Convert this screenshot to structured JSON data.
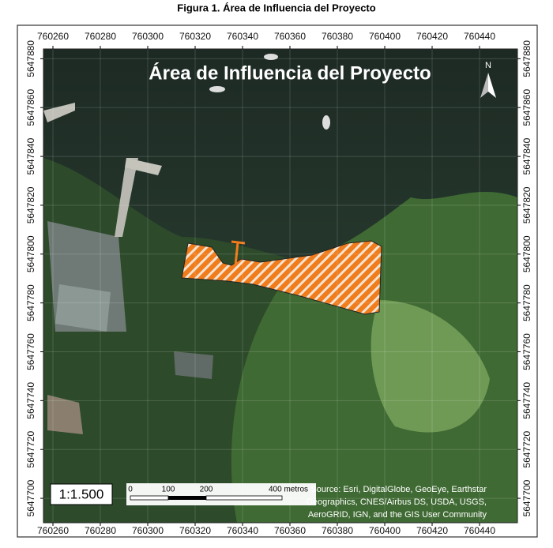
{
  "caption": "Figura 1. Área de Influencia del Proyecto",
  "map": {
    "title": "Área de Influencia del Proyecto",
    "north": "N",
    "xlim": [
      760256,
      760456
    ],
    "xticks": [
      760260,
      760280,
      760300,
      760320,
      760340,
      760360,
      760380,
      760400,
      760420,
      760440
    ],
    "ylim": [
      5647690,
      5647884
    ],
    "yticks": [
      5647700,
      5647720,
      5647740,
      5647760,
      5647780,
      5647800,
      5647820,
      5647840,
      5647860,
      5647880
    ],
    "scale": "1:1.500",
    "scale_bar": [
      "0",
      "100",
      "200",
      "400 metros"
    ],
    "attribution": [
      "Source: Esri, DigitalGlobe, GeoEye, Earthstar",
      "Geographics, CNES/Airbus DS, USDA, USGS,",
      "AeroGRID, IGN, and the GIS User Community"
    ]
  }
}
